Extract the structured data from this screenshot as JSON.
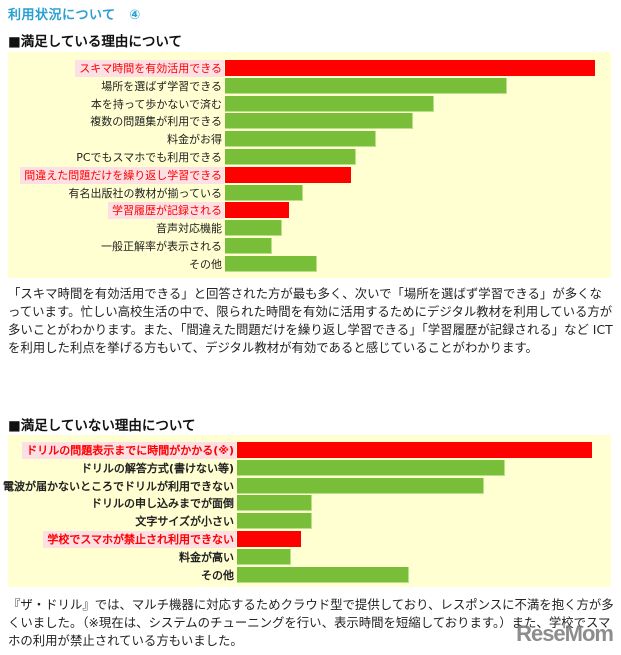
{
  "page_title": "利用状況について　④",
  "sections": [
    {
      "title": "■満足している理由について"
    },
    {
      "title": "■満足していない理由について"
    }
  ],
  "paragraphs": [
    "「スキマ時間を有効活用できる」と回答された方が最も多く、次いで「場所を選ばず学習できる」が多くなっています。忙しい高校生活の中で、限られた時間を有効に活用するためにデジタル教材を利用している方が多いことがわかります。また、「間違えた問題だけを繰り返し学習できる」「学習履歴が記録される」など ICT を利用した利点を挙げる方もいて、デジタル教材が有効であると感じていることがわかります。",
    "『ザ・ドリル』では、マルチ機器に対応するためクラウド型で提供しており、レスポンスに不満を抱く方が多くいました。（※現在は、システムのチューニングを行い、表示時間を短縮しております。）また、学校でスマホの利用が禁止されている方もいました。"
  ],
  "watermark": "ReseMom",
  "colors": {
    "highlight": "#ff0000",
    "normal": "#78be39",
    "chart_bg": "#ffffd2",
    "title": "#29a0d0",
    "label_highlight_bg": "#fde0e4"
  },
  "chart_data": [
    {
      "type": "bar",
      "orientation": "horizontal",
      "title": "■満足している理由について",
      "xlabel": "",
      "ylabel": "",
      "units": "relative (no axis shown; values = bar length in px)",
      "categories": [
        "スキマ時間を有効活用できる",
        "場所を選ばず学習できる",
        "本を持って歩かないで済む",
        "複数の問題集が利用できる",
        "料金がお得",
        "PCでもスマホでも利用できる",
        "間違えた問題だけを繰り返し学習できる",
        "有名出版社の教材が揃っている",
        "学習履歴が記録される",
        "音声対応機能",
        "一般正解率が表示される",
        "その他"
      ],
      "values": [
        370,
        282,
        209,
        188,
        151,
        131,
        126,
        78,
        64,
        57,
        47,
        92
      ],
      "highlighted": [
        true,
        false,
        false,
        false,
        false,
        false,
        true,
        false,
        true,
        false,
        false,
        false
      ],
      "grid": false,
      "legend": false
    },
    {
      "type": "bar",
      "orientation": "horizontal",
      "title": "■満足していない理由について",
      "xlabel": "",
      "ylabel": "",
      "units": "relative (no axis shown; values = bar length in px)",
      "categories": [
        "ドリルの問題表示までに時間がかかる(※)",
        "ドリルの解答方式(書けない等)",
        "電波が届かないところでドリルが利用できない",
        "ドリルの申し込みまでが面倒",
        "文字サイズが小さい",
        "学校でスマホが禁止され利用できない",
        "料金が高い",
        "その他"
      ],
      "values": [
        355,
        268,
        247,
        75,
        75,
        64,
        54,
        172
      ],
      "highlighted": [
        true,
        false,
        false,
        false,
        false,
        true,
        false,
        false
      ],
      "grid": false,
      "legend": false
    }
  ]
}
